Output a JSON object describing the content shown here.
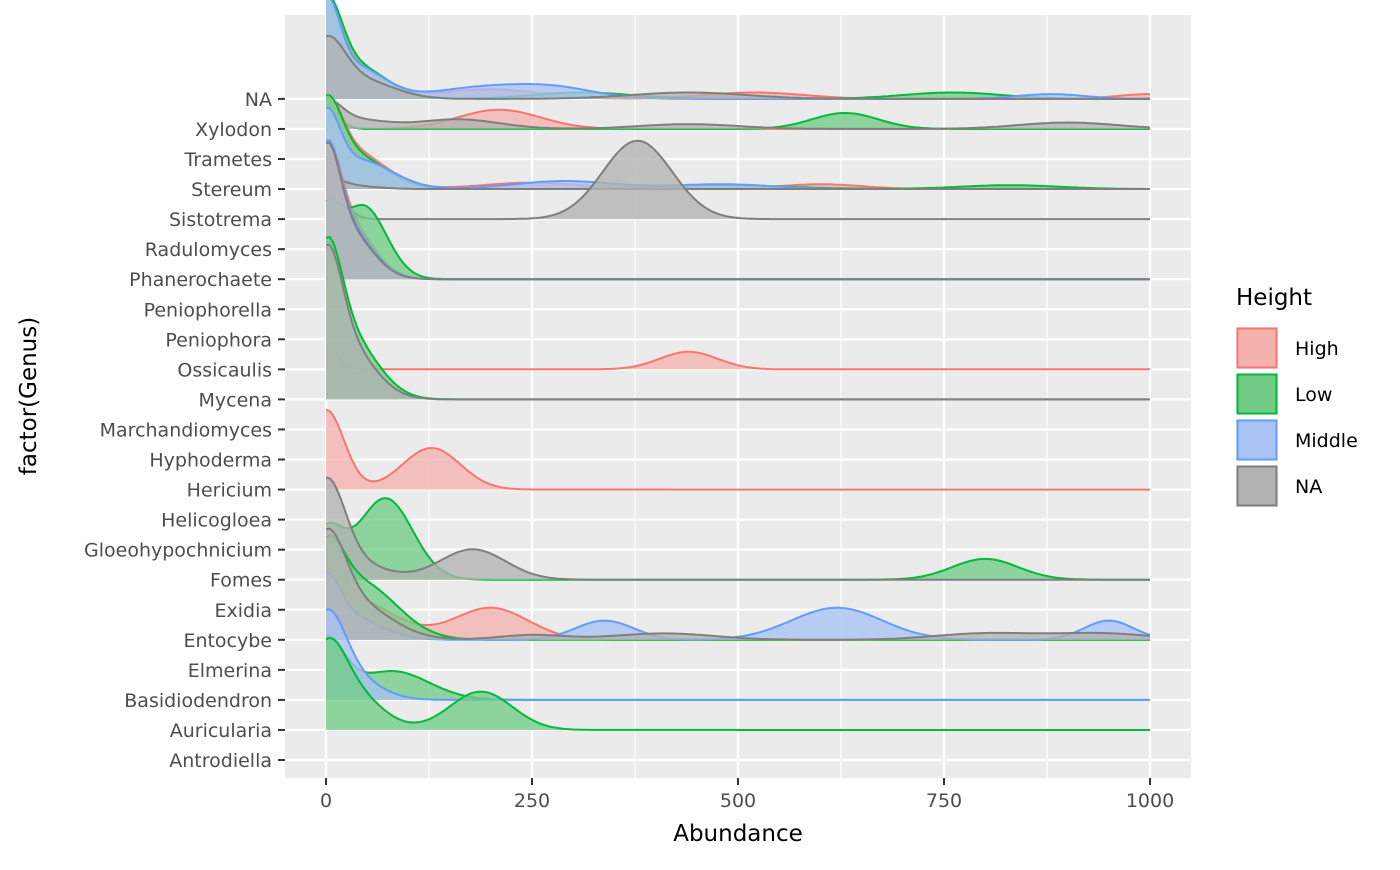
{
  "chart_data": {
    "type": "ridgeline",
    "xlabel": "Abundance",
    "ylabel": "factor(Genus)",
    "xlim": [
      -100,
      1100
    ],
    "x_ticks": [
      0,
      250,
      500,
      750,
      1000
    ],
    "x_tick_labels": [
      "0",
      "250",
      "500",
      "750",
      "1000"
    ],
    "categories": [
      "Antrodiella",
      "Auricularia",
      "Basidiodendron",
      "Elmerina",
      "Entocybe",
      "Exidia",
      "Fomes",
      "Gloeohypochnicium",
      "Helicogloea",
      "Hericium",
      "Hyphoderma",
      "Marchandiomyces",
      "Mycena",
      "Ossicaulis",
      "Peniophora",
      "Peniophorella",
      "Phanerochaete",
      "Radulomyces",
      "Sistotrema",
      "Stereum",
      "Trametes",
      "Xylodon",
      "NA"
    ],
    "legend": {
      "title": "Height",
      "entries": [
        {
          "name": "High",
          "color": "#F8766D",
          "fill": "#F4B2AE"
        },
        {
          "name": "Low",
          "color": "#00BA38",
          "fill": "#72CC86"
        },
        {
          "name": "Middle",
          "color": "#619CFF",
          "fill": "#A8C3F4"
        },
        {
          "name": "NA",
          "color": "#7F7F7F",
          "fill": "#B2B2B2"
        }
      ]
    },
    "series": [
      {
        "genus": "NA",
        "group": "High",
        "peaks": [
          [
            0,
            2.2,
            18
          ],
          [
            30,
            1.0,
            40
          ],
          [
            200,
            0.3,
            60
          ],
          [
            520,
            0.2,
            60
          ],
          [
            1000,
            0.15,
            40
          ]
        ]
      },
      {
        "genus": "NA",
        "group": "Low",
        "peaks": [
          [
            0,
            2.4,
            18
          ],
          [
            30,
            1.1,
            40
          ],
          [
            310,
            0.2,
            60
          ],
          [
            760,
            0.2,
            60
          ]
        ]
      },
      {
        "genus": "NA",
        "group": "Middle",
        "peaks": [
          [
            0,
            2.6,
            16
          ],
          [
            35,
            1.0,
            35
          ],
          [
            190,
            0.35,
            60
          ],
          [
            280,
            0.3,
            50
          ],
          [
            880,
            0.15,
            40
          ]
        ]
      },
      {
        "genus": "NA",
        "group": "NA",
        "peaks": [
          [
            0,
            1.6,
            22
          ],
          [
            40,
            0.6,
            40
          ],
          [
            440,
            0.2,
            70
          ]
        ]
      },
      {
        "genus": "Xylodon",
        "group": "High",
        "peaks": [
          [
            0,
            0.5,
            15
          ],
          [
            210,
            0.6,
            50
          ]
        ]
      },
      {
        "genus": "Xylodon",
        "group": "Low",
        "peaks": [
          [
            0,
            0.6,
            15
          ],
          [
            630,
            0.5,
            40
          ]
        ]
      },
      {
        "genus": "Xylodon",
        "group": "NA",
        "peaks": [
          [
            0,
            0.7,
            18
          ],
          [
            30,
            0.3,
            40
          ],
          [
            160,
            0.3,
            50
          ],
          [
            440,
            0.15,
            60
          ],
          [
            900,
            0.2,
            60
          ]
        ]
      },
      {
        "genus": "Stereum",
        "group": "High",
        "peaks": [
          [
            0,
            2.0,
            18
          ],
          [
            30,
            1.2,
            40
          ],
          [
            250,
            0.2,
            60
          ],
          [
            600,
            0.15,
            50
          ]
        ]
      },
      {
        "genus": "Stereum",
        "group": "Low",
        "peaks": [
          [
            0,
            2.1,
            18
          ],
          [
            30,
            1.1,
            40
          ],
          [
            480,
            0.12,
            80
          ],
          [
            830,
            0.12,
            60
          ]
        ]
      },
      {
        "genus": "Stereum",
        "group": "Middle",
        "peaks": [
          [
            0,
            2.0,
            16
          ],
          [
            40,
            0.9,
            40
          ],
          [
            290,
            0.25,
            60
          ],
          [
            480,
            0.15,
            60
          ]
        ]
      },
      {
        "genus": "Stereum",
        "group": "NA",
        "peaks": [
          [
            0,
            0.3,
            18
          ],
          [
            30,
            0.1,
            30
          ]
        ]
      },
      {
        "genus": "Sistotrema",
        "group": "NA",
        "peaks": [
          [
            0,
            1.25,
            18
          ],
          [
            378,
            2.45,
            42
          ]
        ]
      },
      {
        "genus": "Phanerochaete",
        "group": "High",
        "peaks": [
          [
            0,
            3.0,
            16
          ],
          [
            25,
            1.8,
            30
          ]
        ]
      },
      {
        "genus": "Phanerochaete",
        "group": "Low",
        "peaks": [
          [
            0,
            1.8,
            15
          ],
          [
            45,
            2.3,
            28
          ]
        ]
      },
      {
        "genus": "Phanerochaete",
        "group": "Middle",
        "peaks": [
          [
            0,
            3.2,
            16
          ],
          [
            25,
            1.6,
            30
          ]
        ]
      },
      {
        "genus": "Phanerochaete",
        "group": "NA",
        "peaks": [
          [
            0,
            3.2,
            16
          ],
          [
            25,
            1.5,
            30
          ]
        ]
      },
      {
        "genus": "Ossicaulis",
        "group": "High",
        "peaks": [
          [
            0,
            0.6,
            15
          ],
          [
            440,
            0.55,
            35
          ]
        ]
      },
      {
        "genus": "Mycena",
        "group": "Low",
        "peaks": [
          [
            0,
            3.5,
            18
          ],
          [
            25,
            2.0,
            35
          ]
        ]
      },
      {
        "genus": "Mycena",
        "group": "NA",
        "peaks": [
          [
            0,
            3.3,
            18
          ],
          [
            20,
            1.8,
            35
          ]
        ]
      },
      {
        "genus": "Hericium",
        "group": "High",
        "peaks": [
          [
            0,
            2.5,
            22
          ],
          [
            128,
            1.3,
            35
          ]
        ]
      },
      {
        "genus": "Fomes",
        "group": "Low",
        "peaks": [
          [
            0,
            1.5,
            20
          ],
          [
            72,
            2.55,
            33
          ],
          [
            800,
            0.65,
            40
          ]
        ]
      },
      {
        "genus": "Fomes",
        "group": "NA",
        "peaks": [
          [
            0,
            2.7,
            22
          ],
          [
            25,
            0.6,
            40
          ],
          [
            178,
            0.95,
            40
          ]
        ]
      },
      {
        "genus": "Entocybe",
        "group": "High",
        "peaks": [
          [
            0,
            1.5,
            18
          ],
          [
            30,
            1.3,
            50
          ],
          [
            200,
            1.0,
            45
          ]
        ]
      },
      {
        "genus": "Entocybe",
        "group": "Low",
        "peaks": [
          [
            0,
            2.0,
            20
          ],
          [
            40,
            1.8,
            45
          ]
        ]
      },
      {
        "genus": "Entocybe",
        "group": "Middle",
        "peaks": [
          [
            0,
            1.4,
            16
          ],
          [
            20,
            0.8,
            40
          ],
          [
            338,
            0.6,
            35
          ],
          [
            620,
            1.0,
            55
          ],
          [
            950,
            0.6,
            30
          ]
        ]
      },
      {
        "genus": "Entocybe",
        "group": "NA",
        "peaks": [
          [
            0,
            2.5,
            22
          ],
          [
            30,
            1.2,
            45
          ],
          [
            250,
            0.15,
            40
          ],
          [
            410,
            0.2,
            60
          ],
          [
            800,
            0.2,
            60
          ],
          [
            940,
            0.2,
            60
          ]
        ]
      },
      {
        "genus": "Basidiodendron",
        "group": "Low",
        "peaks": [
          [
            0,
            1.8,
            22
          ],
          [
            80,
            0.9,
            45
          ]
        ]
      },
      {
        "genus": "Basidiodendron",
        "group": "Middle",
        "peaks": [
          [
            0,
            2.2,
            22
          ],
          [
            25,
            0.8,
            35
          ]
        ]
      },
      {
        "genus": "Auricularia",
        "group": "Low",
        "peaks": [
          [
            0,
            2.0,
            22
          ],
          [
            30,
            1.2,
            35
          ],
          [
            188,
            1.2,
            38
          ]
        ]
      }
    ]
  }
}
